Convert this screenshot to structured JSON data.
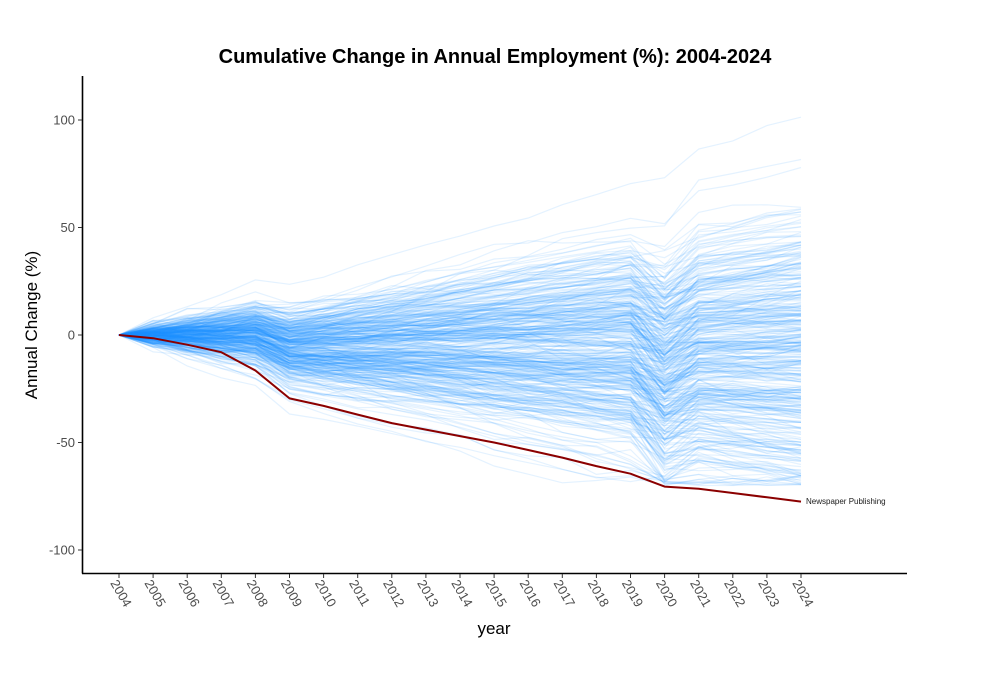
{
  "chart_data": {
    "type": "line",
    "title": "Cumulative Change in Annual Employment (%): 2004-2024",
    "xlabel": "year",
    "ylabel": "Annual Change (%)",
    "x": [
      2004,
      2005,
      2006,
      2007,
      2008,
      2009,
      2010,
      2011,
      2012,
      2013,
      2014,
      2015,
      2016,
      2017,
      2018,
      2019,
      2020,
      2021,
      2022,
      2023,
      2024
    ],
    "x_tick_labels": [
      "2004",
      "2005",
      "2006",
      "2007",
      "2008",
      "2009",
      "2010",
      "2011",
      "2012",
      "2013",
      "2014",
      "2015",
      "2016",
      "2017",
      "2018",
      "2019",
      "2020",
      "2021",
      "2022",
      "2023",
      "2024"
    ],
    "ylim": [
      -110,
      120
    ],
    "y_ticks": [
      100,
      50,
      0,
      -50,
      -100
    ],
    "y_tick_labels": [
      "100",
      "50",
      "0",
      "-50",
      "-100"
    ],
    "grid": false,
    "highlight_series": {
      "name": "Newspaper Publishing",
      "color": "#8b0000",
      "values": [
        0,
        -1.5,
        -4.5,
        -8,
        -16.5,
        -29.5,
        -33,
        -37,
        -41,
        -44,
        -47,
        -50,
        -53.5,
        -57,
        -61,
        -64.5,
        -70.5,
        -71.5,
        -73.5,
        -75.5,
        -77.5
      ]
    },
    "background_series": {
      "description_count": 400,
      "color": "#1e90ff",
      "opacity": 0.12,
      "range": [
        -70,
        110
      ]
    }
  }
}
